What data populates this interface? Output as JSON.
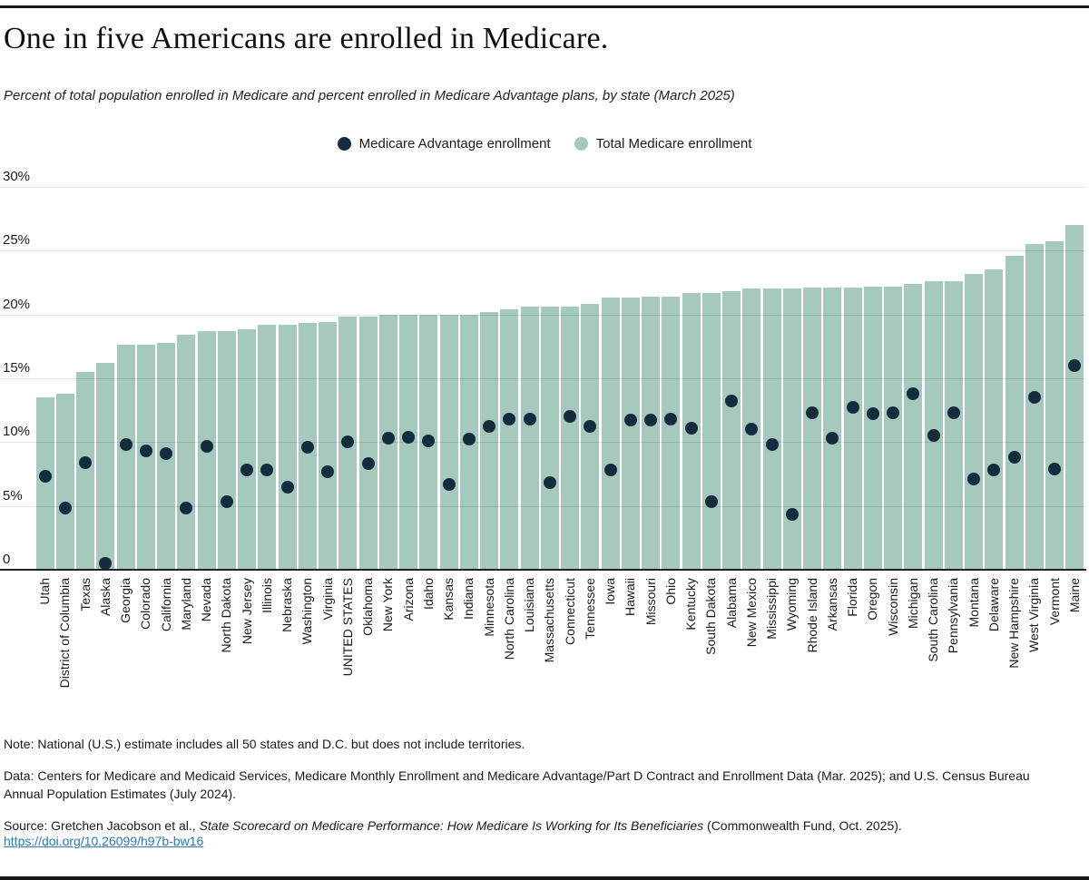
{
  "header": {
    "title": "One in five Americans are enrolled in Medicare.",
    "subtitle": "Percent of total population enrolled in Medicare and percent enrolled in Medicare Advantage plans, by state (March 2025)"
  },
  "legend": {
    "items": [
      {
        "label": "Medicare Advantage enrollment",
        "color": "#152b3e"
      },
      {
        "label": "Total Medicare enrollment",
        "color": "#a5c9bc"
      }
    ]
  },
  "colors": {
    "bar_fill": "#a5c9bc",
    "dot_fill": "#152b3e",
    "link_blue": "#2a7ab0",
    "rule_black": "#161616"
  },
  "chart_data": {
    "type": "bar",
    "subtype": "bar-with-scatter-overlay",
    "title": "One in five Americans are enrolled in Medicare.",
    "xlabel": "",
    "ylabel": "",
    "ylim": [
      0,
      30
    ],
    "grid": true,
    "legend_position": "top-center",
    "yticks": [
      {
        "label": "0",
        "value": 0
      },
      {
        "label": "5%",
        "value": 5
      },
      {
        "label": "10%",
        "value": 10
      },
      {
        "label": "15%",
        "value": 15
      },
      {
        "label": "20%",
        "value": 20
      },
      {
        "label": "25%",
        "value": 25
      },
      {
        "label": "30%",
        "value": 30
      }
    ],
    "categories": [
      "Utah",
      "District of Columbia",
      "Texas",
      "Alaska",
      "Georgia",
      "Colorado",
      "California",
      "Maryland",
      "Nevada",
      "North Dakota",
      "New Jersey",
      "Illinois",
      "Nebraska",
      "Washington",
      "Virginia",
      "UNITED STATES",
      "Oklahoma",
      "New York",
      "Arizona",
      "Idaho",
      "Kansas",
      "Indiana",
      "Minnesota",
      "North Carolina",
      "Louisiana",
      "Massachusetts",
      "Connecticut",
      "Tennessee",
      "Iowa",
      "Hawaii",
      "Missouri",
      "Ohio",
      "Kentucky",
      "South Dakota",
      "Alabama",
      "New Mexico",
      "Mississippi",
      "Wyoming",
      "Rhode Island",
      "Arkansas",
      "Florida",
      "Oregon",
      "Wisconsin",
      "Michigan",
      "South Carolina",
      "Pennsylvania",
      "Montana",
      "Delaware",
      "New Hampshire",
      "West Virginia",
      "Vermont",
      "Maine"
    ],
    "series": [
      {
        "name": "Total Medicare enrollment",
        "type": "bar",
        "color": "#a5c9bc",
        "values": [
          13.5,
          13.8,
          15.5,
          16.2,
          17.6,
          17.6,
          17.8,
          18.4,
          18.7,
          18.7,
          18.8,
          19.2,
          19.2,
          19.3,
          19.4,
          19.8,
          19.8,
          20.0,
          20.0,
          20.0,
          20.0,
          20.0,
          20.2,
          20.4,
          20.6,
          20.6,
          20.6,
          20.8,
          21.3,
          21.3,
          21.4,
          21.4,
          21.7,
          21.7,
          21.8,
          22.0,
          22.0,
          22.0,
          22.1,
          22.1,
          22.1,
          22.2,
          22.2,
          22.4,
          22.6,
          22.6,
          23.2,
          23.5,
          24.6,
          25.5,
          25.7,
          27.0
        ]
      },
      {
        "name": "Medicare Advantage enrollment",
        "type": "scatter",
        "color": "#152b3e",
        "values": [
          7.3,
          4.8,
          8.4,
          0.5,
          9.8,
          9.3,
          9.1,
          4.8,
          9.7,
          5.3,
          7.8,
          7.8,
          6.5,
          9.6,
          7.7,
          10.0,
          8.3,
          10.3,
          10.4,
          10.1,
          6.7,
          10.2,
          11.2,
          11.8,
          11.8,
          6.8,
          12.0,
          11.2,
          7.8,
          11.7,
          11.7,
          11.8,
          11.1,
          5.3,
          13.2,
          11.0,
          9.8,
          4.3,
          12.3,
          10.3,
          12.7,
          12.2,
          12.3,
          13.8,
          10.5,
          12.3,
          7.1,
          7.8,
          8.8,
          13.5,
          7.9,
          16.0
        ]
      }
    ]
  },
  "footer": {
    "note": "Note: National (U.S.) estimate includes all 50 states and D.C. but does not include territories.",
    "data": "Data: Centers for Medicare and Medicaid Services, Medicare Monthly Enrollment and Medicare Advantage/Part D Contract and Enrollment Data (Mar. 2025); and U.S. Census Bureau Annual Population Estimates (July 2024).",
    "source_prefix": "Source: Gretchen Jacobson et al., ",
    "source_italic": "State Scorecard on Medicare Performance: How Medicare Is Working for Its Beneficiaries",
    "source_suffix": " (Commonwealth Fund, Oct. 2025).",
    "link": "https://doi.org/10.26099/h97b-bw16"
  }
}
